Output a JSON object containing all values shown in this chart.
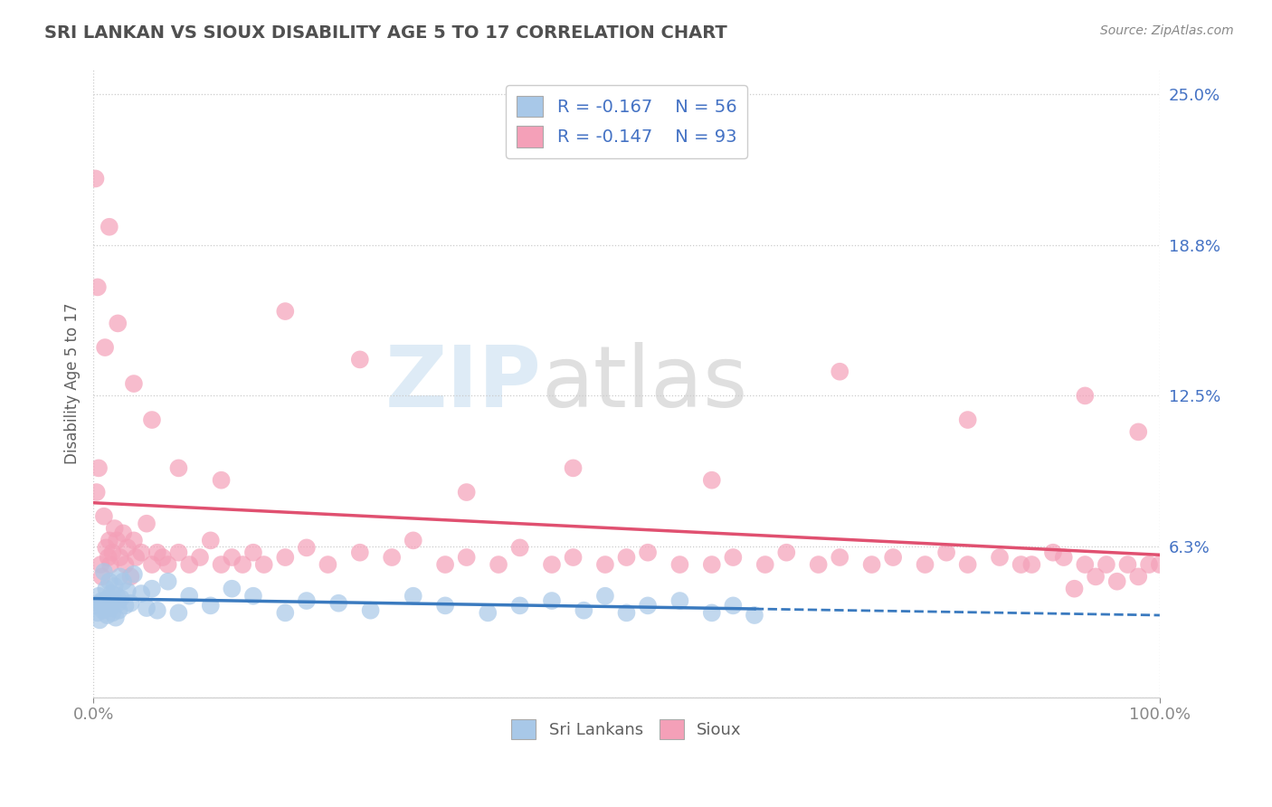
{
  "title": "SRI LANKAN VS SIOUX DISABILITY AGE 5 TO 17 CORRELATION CHART",
  "source": "Source: ZipAtlas.com",
  "ylabel": "Disability Age 5 to 17",
  "xlim": [
    0,
    100
  ],
  "ylim": [
    0,
    26
  ],
  "yticks": [
    0,
    6.25,
    12.5,
    18.75,
    25.0
  ],
  "ytick_labels": [
    "",
    "6.3%",
    "12.5%",
    "18.8%",
    "25.0%"
  ],
  "xtick_labels": [
    "0.0%",
    "100.0%"
  ],
  "sri_lankan_color": "#a8c8e8",
  "sioux_color": "#f4a0b8",
  "sri_lankan_line_color": "#3a7abf",
  "sioux_line_color": "#e05070",
  "legend_label_1": "R = -0.167    N = 56",
  "legend_label_2": "R = -0.147    N = 93",
  "legend_labels_bottom": [
    "Sri Lankans",
    "Sioux"
  ],
  "background_color": "#ffffff",
  "grid_color": "#cccccc",
  "title_color": "#505050",
  "tick_label_color": "#4472c4",
  "watermark_zip": "ZIP",
  "watermark_atlas": "atlas",
  "sl_x": [
    0.3,
    0.4,
    0.5,
    0.6,
    0.7,
    0.8,
    0.9,
    1.0,
    1.1,
    1.2,
    1.3,
    1.4,
    1.5,
    1.6,
    1.7,
    1.8,
    1.9,
    2.0,
    2.1,
    2.2,
    2.3,
    2.4,
    2.5,
    2.6,
    2.8,
    3.0,
    3.2,
    3.5,
    3.8,
    4.5,
    5.0,
    5.5,
    6.0,
    7.0,
    8.0,
    9.0,
    11.0,
    13.0,
    15.0,
    18.0,
    20.0,
    23.0,
    26.0,
    30.0,
    33.0,
    37.0,
    40.0,
    43.0,
    46.0,
    48.0,
    50.0,
    52.0,
    55.0,
    58.0,
    60.0,
    62.0
  ],
  "sl_y": [
    3.8,
    3.5,
    4.2,
    3.2,
    3.9,
    4.0,
    3.6,
    5.2,
    3.8,
    4.5,
    3.4,
    4.1,
    4.8,
    3.7,
    4.3,
    3.5,
    4.0,
    4.6,
    3.3,
    4.2,
    3.9,
    3.6,
    5.0,
    4.1,
    4.8,
    3.8,
    4.4,
    3.9,
    5.1,
    4.3,
    3.7,
    4.5,
    3.6,
    4.8,
    3.5,
    4.2,
    3.8,
    4.5,
    4.2,
    3.5,
    4.0,
    3.9,
    3.6,
    4.2,
    3.8,
    3.5,
    3.8,
    4.0,
    3.6,
    4.2,
    3.5,
    3.8,
    4.0,
    3.5,
    3.8,
    3.4
  ],
  "si_x": [
    0.2,
    0.3,
    0.5,
    0.7,
    0.8,
    1.0,
    1.2,
    1.4,
    1.5,
    1.6,
    1.8,
    2.0,
    2.2,
    2.5,
    2.8,
    3.0,
    3.2,
    3.5,
    3.8,
    4.0,
    4.5,
    5.0,
    5.5,
    6.0,
    6.5,
    7.0,
    8.0,
    9.0,
    10.0,
    11.0,
    12.0,
    13.0,
    14.0,
    15.0,
    16.0,
    18.0,
    20.0,
    22.0,
    25.0,
    28.0,
    30.0,
    33.0,
    35.0,
    38.0,
    40.0,
    43.0,
    45.0,
    48.0,
    50.0,
    52.0,
    55.0,
    58.0,
    60.0,
    63.0,
    65.0,
    68.0,
    70.0,
    73.0,
    75.0,
    78.0,
    80.0,
    82.0,
    85.0,
    87.0,
    88.0,
    90.0,
    91.0,
    92.0,
    93.0,
    94.0,
    95.0,
    96.0,
    97.0,
    98.0,
    99.0,
    100.0,
    0.4,
    1.1,
    2.3,
    3.8,
    5.5,
    8.0,
    12.0,
    18.0,
    25.0,
    35.0,
    45.0,
    58.0,
    70.0,
    82.0,
    93.0,
    98.0,
    1.5
  ],
  "si_y": [
    21.5,
    8.5,
    9.5,
    5.5,
    5.0,
    7.5,
    6.2,
    5.8,
    6.5,
    5.5,
    6.0,
    7.0,
    6.5,
    5.8,
    6.8,
    5.5,
    6.2,
    5.0,
    6.5,
    5.8,
    6.0,
    7.2,
    5.5,
    6.0,
    5.8,
    5.5,
    6.0,
    5.5,
    5.8,
    6.5,
    5.5,
    5.8,
    5.5,
    6.0,
    5.5,
    5.8,
    6.2,
    5.5,
    6.0,
    5.8,
    6.5,
    5.5,
    5.8,
    5.5,
    6.2,
    5.5,
    5.8,
    5.5,
    5.8,
    6.0,
    5.5,
    5.5,
    5.8,
    5.5,
    6.0,
    5.5,
    5.8,
    5.5,
    5.8,
    5.5,
    6.0,
    5.5,
    5.8,
    5.5,
    5.5,
    6.0,
    5.8,
    4.5,
    5.5,
    5.0,
    5.5,
    4.8,
    5.5,
    5.0,
    5.5,
    5.5,
    17.0,
    14.5,
    15.5,
    13.0,
    11.5,
    9.5,
    9.0,
    16.0,
    14.0,
    8.5,
    9.5,
    9.0,
    13.5,
    11.5,
    12.5,
    11.0,
    19.5
  ]
}
